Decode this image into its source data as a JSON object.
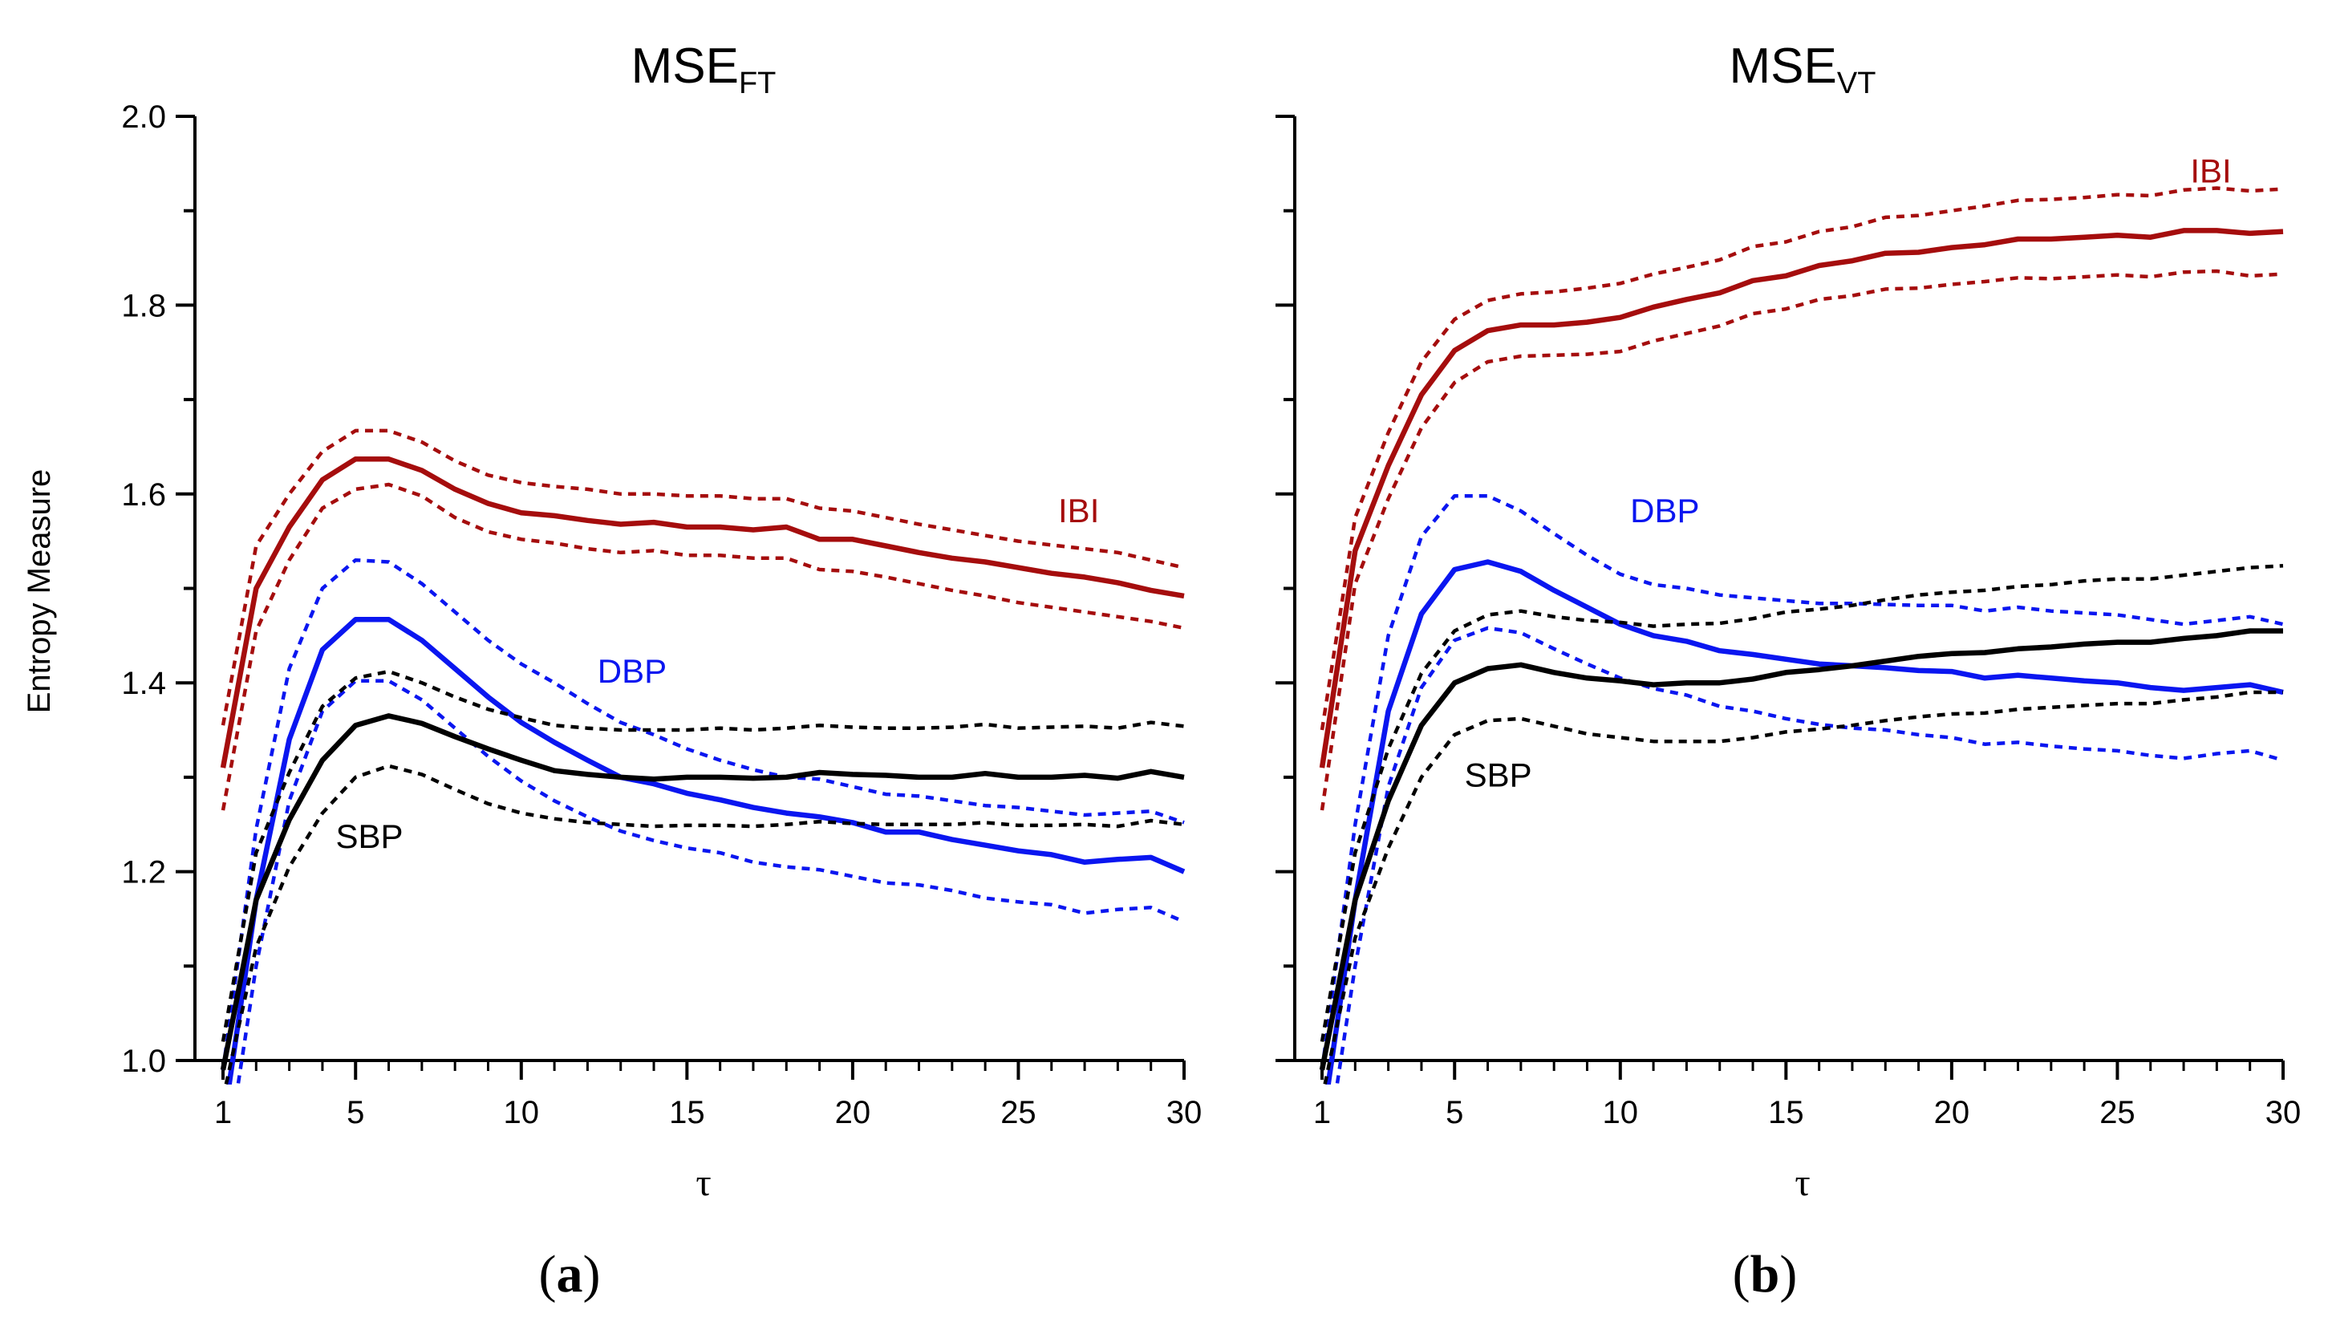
{
  "colors": {
    "IBI": "#a50d0d",
    "DBP": "#0a16f0",
    "SBP": "#000000",
    "axis": "#000000"
  },
  "y_axis_label": "Entropy Measure",
  "chart_data": [
    {
      "type": "line",
      "panel_letter": "a",
      "title_main": "MSE",
      "title_sub": "FT",
      "xlabel": "τ",
      "ylabel": "Entropy Measure",
      "xlim": [
        1,
        30
      ],
      "ylim": [
        1.0,
        2.0
      ],
      "xticks": [
        1,
        5,
        10,
        15,
        20,
        25,
        30
      ],
      "yticks": [
        "1.0",
        "1.2",
        "1.4",
        "1.6",
        "1.8",
        "2.0"
      ],
      "x": [
        1,
        2,
        3,
        4,
        5,
        6,
        7,
        8,
        9,
        10,
        11,
        12,
        13,
        14,
        15,
        16,
        17,
        18,
        19,
        20,
        21,
        22,
        23,
        24,
        25,
        26,
        27,
        28,
        29,
        30
      ],
      "series": [
        {
          "name": "IBI",
          "color_key": "IBI",
          "style": "solid",
          "label_at": [
            26.2,
            1.57
          ],
          "values": [
            1.31,
            1.5,
            1.565,
            1.615,
            1.637,
            1.637,
            1.625,
            1.605,
            1.59,
            1.58,
            1.577,
            1.572,
            1.568,
            1.57,
            1.565,
            1.565,
            1.562,
            1.565,
            1.552,
            1.552,
            1.545,
            1.538,
            1.532,
            1.528,
            1.522,
            1.516,
            1.512,
            1.506,
            1.498,
            1.492
          ]
        },
        {
          "color_key": "IBI",
          "style": "dotted",
          "values": [
            1.355,
            1.545,
            1.6,
            1.645,
            1.667,
            1.667,
            1.655,
            1.635,
            1.62,
            1.612,
            1.608,
            1.605,
            1.6,
            1.6,
            1.598,
            1.598,
            1.595,
            1.595,
            1.585,
            1.582,
            1.575,
            1.568,
            1.562,
            1.556,
            1.55,
            1.546,
            1.542,
            1.538,
            1.53,
            1.522
          ]
        },
        {
          "color_key": "IBI",
          "style": "dotted",
          "values": [
            1.265,
            1.455,
            1.53,
            1.585,
            1.605,
            1.61,
            1.598,
            1.575,
            1.56,
            1.552,
            1.548,
            1.542,
            1.538,
            1.54,
            1.535,
            1.535,
            1.532,
            1.532,
            1.52,
            1.518,
            1.512,
            1.505,
            1.498,
            1.492,
            1.485,
            1.48,
            1.475,
            1.47,
            1.465,
            1.458
          ]
        },
        {
          "name": "DBP",
          "color_key": "DBP",
          "style": "solid",
          "label_at": [
            12.3,
            1.4
          ],
          "values": [
            0.93,
            1.17,
            1.34,
            1.435,
            1.467,
            1.467,
            1.445,
            1.415,
            1.385,
            1.358,
            1.337,
            1.318,
            1.3,
            1.293,
            1.283,
            1.276,
            1.268,
            1.262,
            1.258,
            1.252,
            1.242,
            1.242,
            1.234,
            1.228,
            1.222,
            1.218,
            1.21,
            1.213,
            1.215,
            1.2
          ]
        },
        {
          "color_key": "DBP",
          "style": "dotted",
          "values": [
            0.99,
            1.245,
            1.415,
            1.5,
            1.53,
            1.528,
            1.505,
            1.475,
            1.445,
            1.42,
            1.4,
            1.378,
            1.358,
            1.345,
            1.33,
            1.318,
            1.308,
            1.3,
            1.298,
            1.29,
            1.282,
            1.28,
            1.275,
            1.27,
            1.268,
            1.264,
            1.26,
            1.262,
            1.264,
            1.252
          ]
        },
        {
          "color_key": "DBP",
          "style": "dotted",
          "values": [
            0.87,
            1.1,
            1.275,
            1.37,
            1.402,
            1.402,
            1.382,
            1.352,
            1.322,
            1.296,
            1.275,
            1.258,
            1.243,
            1.233,
            1.225,
            1.22,
            1.21,
            1.205,
            1.202,
            1.195,
            1.188,
            1.186,
            1.18,
            1.172,
            1.168,
            1.165,
            1.156,
            1.16,
            1.162,
            1.147
          ]
        },
        {
          "name": "SBP",
          "color_key": "SBP",
          "style": "solid",
          "label_at": [
            4.4,
            1.225
          ],
          "values": [
            0.99,
            1.17,
            1.255,
            1.318,
            1.355,
            1.365,
            1.357,
            1.343,
            1.33,
            1.318,
            1.307,
            1.303,
            1.3,
            1.298,
            1.3,
            1.3,
            1.299,
            1.3,
            1.305,
            1.303,
            1.302,
            1.3,
            1.3,
            1.304,
            1.3,
            1.3,
            1.302,
            1.299,
            1.306,
            1.3
          ]
        },
        {
          "color_key": "SBP",
          "style": "dotted",
          "values": [
            1.02,
            1.22,
            1.305,
            1.375,
            1.405,
            1.412,
            1.4,
            1.385,
            1.372,
            1.363,
            1.355,
            1.352,
            1.35,
            1.35,
            1.35,
            1.352,
            1.35,
            1.352,
            1.355,
            1.353,
            1.352,
            1.352,
            1.353,
            1.356,
            1.352,
            1.353,
            1.354,
            1.352,
            1.358,
            1.354
          ]
        },
        {
          "color_key": "SBP",
          "style": "dotted",
          "values": [
            0.96,
            1.12,
            1.205,
            1.262,
            1.3,
            1.312,
            1.303,
            1.287,
            1.272,
            1.262,
            1.256,
            1.252,
            1.25,
            1.248,
            1.249,
            1.249,
            1.248,
            1.25,
            1.253,
            1.251,
            1.25,
            1.25,
            1.25,
            1.252,
            1.249,
            1.249,
            1.25,
            1.248,
            1.254,
            1.25
          ]
        }
      ]
    },
    {
      "type": "line",
      "panel_letter": "b",
      "title_main": "MSE",
      "title_sub": "VT",
      "xlabel": "τ",
      "xlim": [
        1,
        30
      ],
      "ylim": [
        1.0,
        2.0
      ],
      "xticks": [
        1,
        5,
        10,
        15,
        20,
        25,
        30
      ],
      "x": [
        1,
        2,
        3,
        4,
        5,
        6,
        7,
        8,
        9,
        10,
        11,
        12,
        13,
        14,
        15,
        16,
        17,
        18,
        19,
        20,
        21,
        22,
        23,
        24,
        25,
        26,
        27,
        28,
        29,
        30
      ],
      "series": [
        {
          "name": "IBI",
          "color_key": "IBI",
          "style": "solid",
          "label_at": [
            27.2,
            1.93
          ],
          "values": [
            1.31,
            1.54,
            1.63,
            1.705,
            1.752,
            1.773,
            1.779,
            1.779,
            1.782,
            1.787,
            1.798,
            1.806,
            1.813,
            1.826,
            1.831,
            1.842,
            1.847,
            1.855,
            1.856,
            1.861,
            1.864,
            1.87,
            1.87,
            1.872,
            1.874,
            1.872,
            1.879,
            1.879,
            1.876,
            1.878
          ]
        },
        {
          "color_key": "IBI",
          "style": "dotted",
          "values": [
            1.35,
            1.575,
            1.665,
            1.74,
            1.785,
            1.805,
            1.812,
            1.814,
            1.818,
            1.823,
            1.833,
            1.84,
            1.848,
            1.862,
            1.867,
            1.878,
            1.883,
            1.893,
            1.895,
            1.9,
            1.905,
            1.911,
            1.912,
            1.914,
            1.917,
            1.916,
            1.922,
            1.924,
            1.921,
            1.923
          ]
        },
        {
          "color_key": "IBI",
          "style": "dotted",
          "values": [
            1.265,
            1.505,
            1.595,
            1.67,
            1.718,
            1.74,
            1.746,
            1.747,
            1.748,
            1.751,
            1.762,
            1.77,
            1.778,
            1.791,
            1.796,
            1.806,
            1.81,
            1.817,
            1.818,
            1.822,
            1.825,
            1.829,
            1.828,
            1.83,
            1.832,
            1.83,
            1.835,
            1.836,
            1.831,
            1.833
          ]
        },
        {
          "name": "DBP",
          "color_key": "DBP",
          "style": "solid",
          "label_at": [
            10.3,
            1.57
          ],
          "values": [
            0.93,
            1.17,
            1.37,
            1.473,
            1.52,
            1.528,
            1.518,
            1.498,
            1.48,
            1.462,
            1.45,
            1.444,
            1.434,
            1.43,
            1.425,
            1.42,
            1.418,
            1.416,
            1.413,
            1.412,
            1.405,
            1.408,
            1.405,
            1.402,
            1.4,
            1.395,
            1.392,
            1.395,
            1.398,
            1.39
          ]
        },
        {
          "color_key": "DBP",
          "style": "dotted",
          "values": [
            0.99,
            1.25,
            1.45,
            1.555,
            1.598,
            1.598,
            1.582,
            1.558,
            1.535,
            1.515,
            1.504,
            1.5,
            1.493,
            1.49,
            1.487,
            1.484,
            1.484,
            1.483,
            1.482,
            1.482,
            1.476,
            1.48,
            1.476,
            1.474,
            1.472,
            1.467,
            1.462,
            1.466,
            1.47,
            1.462
          ]
        },
        {
          "color_key": "DBP",
          "style": "dotted",
          "values": [
            0.87,
            1.1,
            1.29,
            1.395,
            1.445,
            1.458,
            1.453,
            1.436,
            1.42,
            1.405,
            1.394,
            1.387,
            1.375,
            1.37,
            1.362,
            1.356,
            1.352,
            1.35,
            1.345,
            1.342,
            1.335,
            1.337,
            1.333,
            1.33,
            1.328,
            1.323,
            1.32,
            1.325,
            1.328,
            1.318
          ]
        },
        {
          "name": "SBP",
          "color_key": "SBP",
          "style": "solid",
          "label_at": [
            5.3,
            1.29
          ],
          "values": [
            0.99,
            1.17,
            1.275,
            1.355,
            1.4,
            1.415,
            1.419,
            1.411,
            1.405,
            1.402,
            1.398,
            1.4,
            1.4,
            1.404,
            1.411,
            1.414,
            1.418,
            1.423,
            1.428,
            1.431,
            1.432,
            1.436,
            1.438,
            1.441,
            1.443,
            1.443,
            1.447,
            1.45,
            1.455,
            1.455
          ]
        },
        {
          "color_key": "SBP",
          "style": "dotted",
          "values": [
            1.02,
            1.22,
            1.33,
            1.41,
            1.455,
            1.472,
            1.476,
            1.47,
            1.466,
            1.464,
            1.46,
            1.462,
            1.463,
            1.468,
            1.475,
            1.478,
            1.482,
            1.488,
            1.493,
            1.496,
            1.498,
            1.502,
            1.504,
            1.508,
            1.51,
            1.51,
            1.514,
            1.518,
            1.522,
            1.524
          ]
        },
        {
          "color_key": "SBP",
          "style": "dotted",
          "values": [
            0.96,
            1.13,
            1.225,
            1.3,
            1.345,
            1.36,
            1.362,
            1.354,
            1.346,
            1.342,
            1.338,
            1.338,
            1.338,
            1.342,
            1.348,
            1.351,
            1.355,
            1.36,
            1.364,
            1.367,
            1.368,
            1.372,
            1.374,
            1.376,
            1.378,
            1.378,
            1.382,
            1.385,
            1.39,
            1.39
          ]
        }
      ]
    }
  ]
}
